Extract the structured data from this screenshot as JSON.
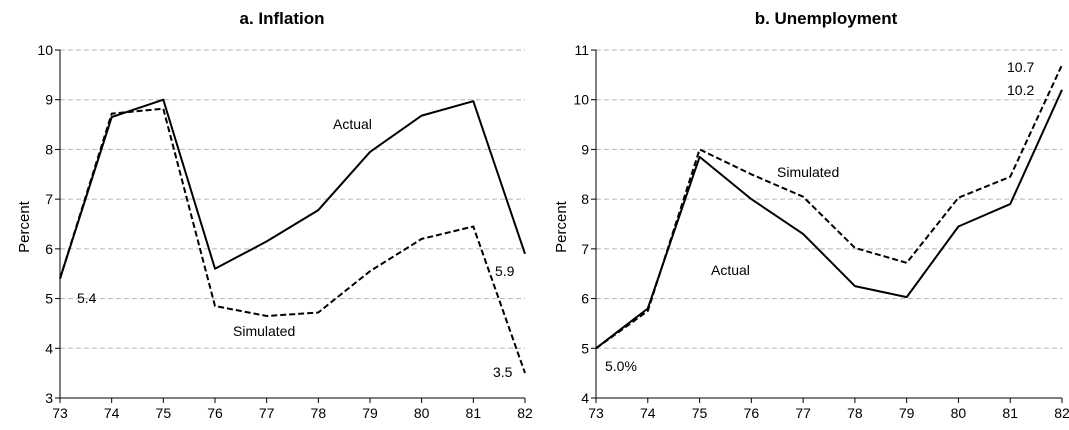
{
  "chart_data": [
    {
      "type": "line",
      "title": "a.  Inflation",
      "ylabel": "Percent",
      "xlabel": "",
      "categories": [
        "73",
        "74",
        "75",
        "76",
        "77",
        "78",
        "79",
        "80",
        "81",
        "82"
      ],
      "ylim": [
        3,
        10
      ],
      "yticks": [
        "3",
        "4",
        "5",
        "6",
        "7",
        "8",
        "9",
        "10"
      ],
      "grid": "horizontal dashed",
      "series": [
        {
          "name": "Actual",
          "style": "solid",
          "values": [
            5.4,
            8.65,
            9.0,
            5.6,
            6.15,
            6.78,
            7.95,
            8.68,
            8.97,
            5.9
          ]
        },
        {
          "name": "Simulated",
          "style": "dashed",
          "values": [
            5.4,
            8.72,
            8.82,
            4.85,
            4.65,
            4.72,
            5.55,
            6.2,
            6.45,
            3.5
          ]
        }
      ],
      "annotations": [
        {
          "text": "5.4",
          "x": "73",
          "y": 5.4
        },
        {
          "text": "5.9",
          "x": "82",
          "y": 5.9
        },
        {
          "text": "3.5",
          "x": "82",
          "y": 3.5
        }
      ]
    },
    {
      "type": "line",
      "title": "b.  Unemployment",
      "ylabel": "Percent",
      "xlabel": "",
      "categories": [
        "73",
        "74",
        "75",
        "76",
        "77",
        "78",
        "79",
        "80",
        "81",
        "82"
      ],
      "ylim": [
        4,
        11
      ],
      "yticks": [
        "4",
        "5",
        "6",
        "7",
        "8",
        "9",
        "10",
        "11"
      ],
      "grid": "horizontal dashed",
      "series": [
        {
          "name": "Actual",
          "style": "solid",
          "values": [
            5.0,
            5.8,
            8.85,
            8.0,
            7.3,
            6.25,
            6.03,
            7.45,
            7.9,
            10.2
          ]
        },
        {
          "name": "Simulated",
          "style": "dashed",
          "values": [
            5.0,
            5.75,
            9.0,
            8.5,
            8.05,
            7.02,
            6.72,
            8.03,
            8.45,
            10.7
          ]
        }
      ],
      "annotations": [
        {
          "text": "5.0%",
          "x": "73",
          "y": 5.0
        },
        {
          "text": "10.7",
          "x": "82",
          "y": 10.7
        },
        {
          "text": "10.2",
          "x": "82",
          "y": 10.2
        }
      ]
    }
  ]
}
